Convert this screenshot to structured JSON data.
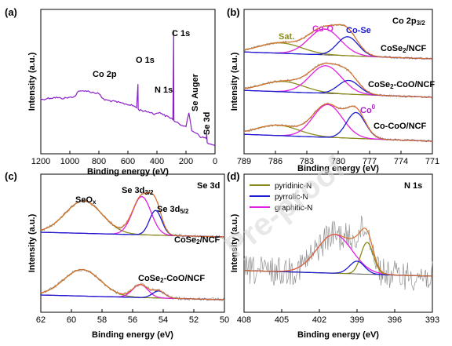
{
  "chart_data": [
    {
      "panel": "(a)",
      "type": "line",
      "xlabel": "Binding energy (eV)",
      "ylabel": "Intensity (a.u.)",
      "xlim": [
        1200,
        0
      ],
      "xticks": [
        1200,
        1000,
        800,
        600,
        400,
        200,
        0
      ],
      "grid": false,
      "series": [
        {
          "color": "#8a1fc6",
          "x": [
            1200,
            1150,
            1100,
            1050,
            1000,
            960,
            950,
            900,
            850,
            800,
            780,
            760,
            700,
            650,
            600,
            560,
            540,
            531,
            529,
            520,
            480,
            450,
            420,
            400,
            380,
            350,
            300,
            290,
            285,
            283,
            280,
            260,
            240,
            200,
            180,
            160,
            140,
            120,
            100,
            60,
            57,
            54,
            30,
            0
          ],
          "y": [
            70,
            72,
            73,
            72,
            73,
            75,
            80,
            82,
            80,
            78,
            73,
            70,
            68,
            66,
            64,
            62,
            60,
            90,
            58,
            57,
            55,
            54,
            52,
            52,
            54,
            50,
            46,
            45,
            160,
            44,
            42,
            40,
            38,
            36,
            52,
            30,
            28,
            26,
            22,
            20,
            26,
            14,
            12,
            10
          ]
        }
      ],
      "annotations": [
        "Co 2p",
        "O 1s",
        "N 1s",
        "C 1s",
        "Se Auger",
        "Se 3d"
      ]
    },
    {
      "panel": "(b)",
      "type": "line",
      "title": "Co 2p3/2",
      "xlabel": "Binding energy (eV)",
      "ylabel": "Intensity (a.u.)",
      "xlim": [
        789,
        771
      ],
      "xticks": [
        789,
        786,
        783,
        780,
        777,
        774,
        771
      ],
      "grid": false,
      "annotations": [
        "Sat.",
        "Co-O",
        "Co-Se",
        "Co0"
      ],
      "traces": [
        {
          "label": "CoSe2/NCF",
          "offset": 2,
          "components": [
            {
              "name": "Sat.",
              "center": 785.5,
              "height": 0.12,
              "width": 2.0
            },
            {
              "name": "Co-O",
              "center": 781.3,
              "height": 0.3,
              "width": 1.5
            },
            {
              "name": "Co-Se",
              "center": 779.1,
              "height": 0.22,
              "width": 1.0
            }
          ]
        },
        {
          "label": "CoSe2-CoO/NCF",
          "offset": 1,
          "components": [
            {
              "name": "Sat.",
              "center": 785.3,
              "height": 0.12,
              "width": 2.0
            },
            {
              "name": "Co-O",
              "center": 781.2,
              "height": 0.32,
              "width": 1.5
            },
            {
              "name": "Co-Se",
              "center": 779.0,
              "height": 0.16,
              "width": 1.0
            }
          ]
        },
        {
          "label": "Co-CoO/NCF",
          "offset": 0,
          "components": [
            {
              "name": "Sat.",
              "center": 785.8,
              "height": 0.12,
              "width": 2.0
            },
            {
              "name": "Co-O",
              "center": 781.0,
              "height": 0.38,
              "width": 1.4
            },
            {
              "name": "Co0",
              "center": 778.3,
              "height": 0.3,
              "width": 0.9
            }
          ]
        }
      ]
    },
    {
      "panel": "(c)",
      "type": "line",
      "title": "Se 3d",
      "xlabel": "Binding energy (eV)",
      "ylabel": "Intensity (a.u.)",
      "xlim": [
        62,
        50
      ],
      "xticks": [
        62,
        60,
        58,
        56,
        54,
        52,
        50
      ],
      "grid": false,
      "annotations": [
        "SeOx",
        "Se 3d3/2",
        "Se 3d5/2"
      ],
      "traces": [
        {
          "label": "CoSe2/NCF",
          "offset": 1,
          "components": [
            {
              "name": "SeOx",
              "center": 59.2,
              "height": 0.55,
              "width": 1.2
            },
            {
              "name": "Se 3d3/2",
              "center": 55.4,
              "height": 0.65,
              "width": 0.6
            },
            {
              "name": "Se 3d5/2",
              "center": 54.5,
              "height": 0.42,
              "width": 0.4
            }
          ]
        },
        {
          "label": "CoSe2-CoO/NCF",
          "offset": 0,
          "components": [
            {
              "name": "SeOx",
              "center": 59.3,
              "height": 0.45,
              "width": 1.2
            },
            {
              "name": "Se 3d3/2",
              "center": 55.5,
              "height": 0.22,
              "width": 0.5
            },
            {
              "name": "Se 3d5/2",
              "center": 54.3,
              "height": 0.12,
              "width": 0.4
            }
          ]
        }
      ]
    },
    {
      "panel": "(d)",
      "type": "line",
      "title": "N 1s",
      "xlabel": "Binding energy (eV)",
      "ylabel": "Intensity (a.u.)",
      "xlim": [
        408,
        393
      ],
      "xticks": [
        408,
        405,
        402,
        399,
        396,
        393
      ],
      "grid": false,
      "legend_position": "top-left",
      "legend": [
        {
          "name": "pyridinic-N",
          "color": "#8a8a1a"
        },
        {
          "name": "pyrrolic-N",
          "color": "#1a1ad0"
        },
        {
          "name": "graphitic-N",
          "color": "#e020e0"
        }
      ],
      "components": [
        {
          "name": "graphitic-N",
          "center": 400.8,
          "height": 0.55,
          "width": 1.4
        },
        {
          "name": "pyridinic-N",
          "center": 398.2,
          "height": 0.45,
          "width": 0.5
        },
        {
          "name": "pyrrolic-N",
          "center": 399.0,
          "height": 0.18,
          "width": 0.6
        }
      ]
    }
  ],
  "watermark": "Pre-proof"
}
